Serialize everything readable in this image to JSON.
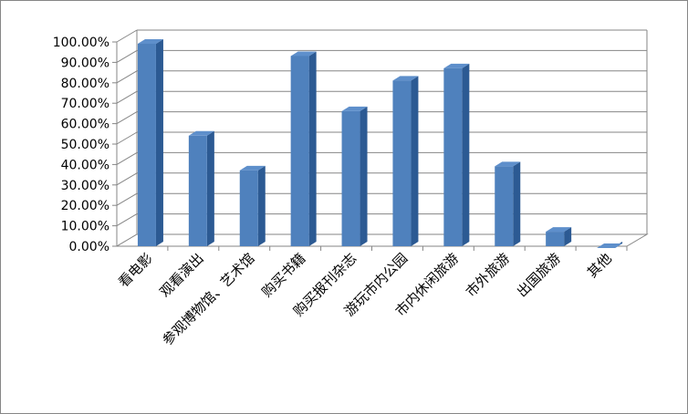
{
  "chart_data": {
    "type": "bar",
    "style": "3d-clustered-column",
    "categories": [
      "看电影",
      "观看演出",
      "参观博物馆、艺术馆",
      "购买书籍",
      "购买报刊杂志",
      "游玩市内公园",
      "市内休闲旅游",
      "市外旅游",
      "出国旅游",
      "其他"
    ],
    "values": [
      100,
      55,
      38,
      94,
      67,
      82,
      88,
      40,
      8,
      0
    ],
    "value_unit": "percent",
    "title": "",
    "xlabel": "",
    "ylabel": "",
    "ylim": [
      0,
      100
    ],
    "yticks": [
      "0.00%",
      "10.00%",
      "20.00%",
      "30.00%",
      "40.00%",
      "50.00%",
      "60.00%",
      "70.00%",
      "80.00%",
      "90.00%",
      "100.00%"
    ],
    "grid": true,
    "legend": "none",
    "colors": {
      "bar_front": "#4F81BD",
      "bar_side": "#2C5A93",
      "bar_top": "#5E8FCB",
      "grid": "#868686",
      "floor": "#FFFFFF"
    }
  }
}
